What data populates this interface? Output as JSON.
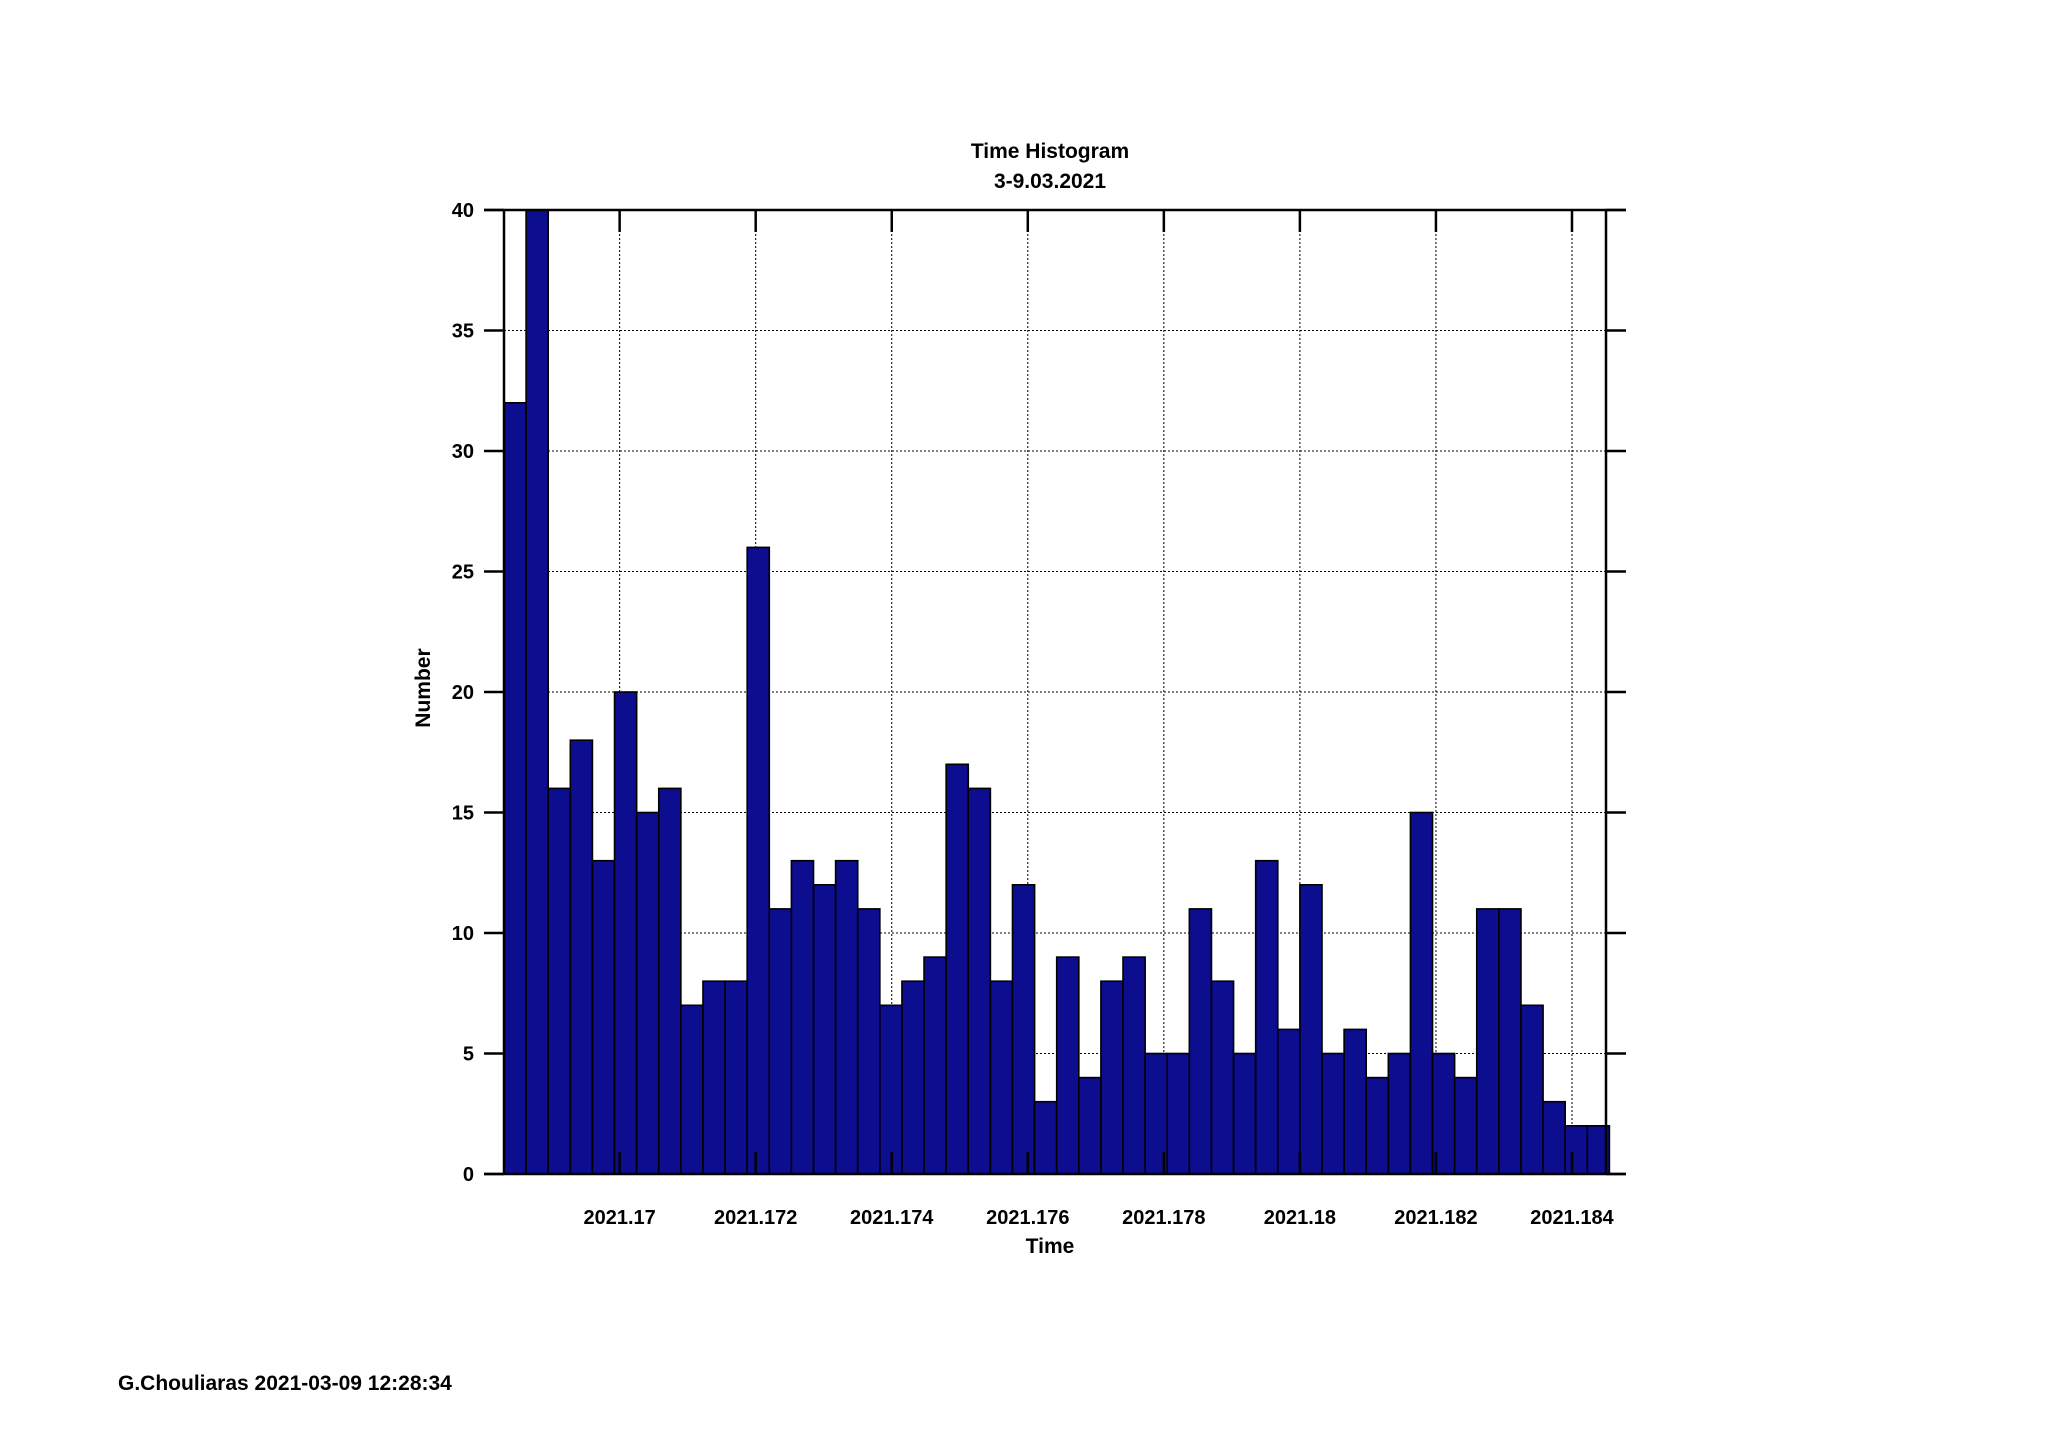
{
  "chart_data": {
    "type": "bar",
    "title": "Time Histogram",
    "subtitle": "3-9.03.2021",
    "xlabel": "Time",
    "ylabel": "Number",
    "xlim": [
      2021.1683,
      2021.1845
    ],
    "ylim": [
      0,
      40
    ],
    "bin_start": 2021.1683,
    "bin_width": 0.000325,
    "values": [
      32,
      40,
      16,
      18,
      13,
      20,
      15,
      16,
      7,
      8,
      8,
      26,
      11,
      13,
      12,
      13,
      11,
      7,
      8,
      9,
      17,
      16,
      8,
      12,
      3,
      9,
      4,
      8,
      9,
      5,
      5,
      11,
      8,
      5,
      13,
      6,
      12,
      5,
      6,
      4,
      5,
      15,
      5,
      4,
      11,
      11,
      7,
      3,
      2,
      2
    ],
    "x_ticks": [
      2021.17,
      2021.172,
      2021.174,
      2021.176,
      2021.178,
      2021.18,
      2021.182,
      2021.184
    ],
    "x_tick_labels": [
      "2021.17",
      "2021.172",
      "2021.174",
      "2021.176",
      "2021.178",
      "2021.18",
      "2021.182",
      "2021.184"
    ],
    "y_ticks": [
      0,
      5,
      10,
      15,
      20,
      25,
      30,
      35,
      40
    ],
    "y_tick_labels": [
      "0",
      "5",
      "10",
      "15",
      "20",
      "25",
      "30",
      "35",
      "40"
    ],
    "grid": true,
    "bar_color": "#0d0d8f",
    "bar_edge_color": "#000000"
  },
  "footer": {
    "text": "G.Chouliaras 2021-03-09 12:28:34"
  }
}
